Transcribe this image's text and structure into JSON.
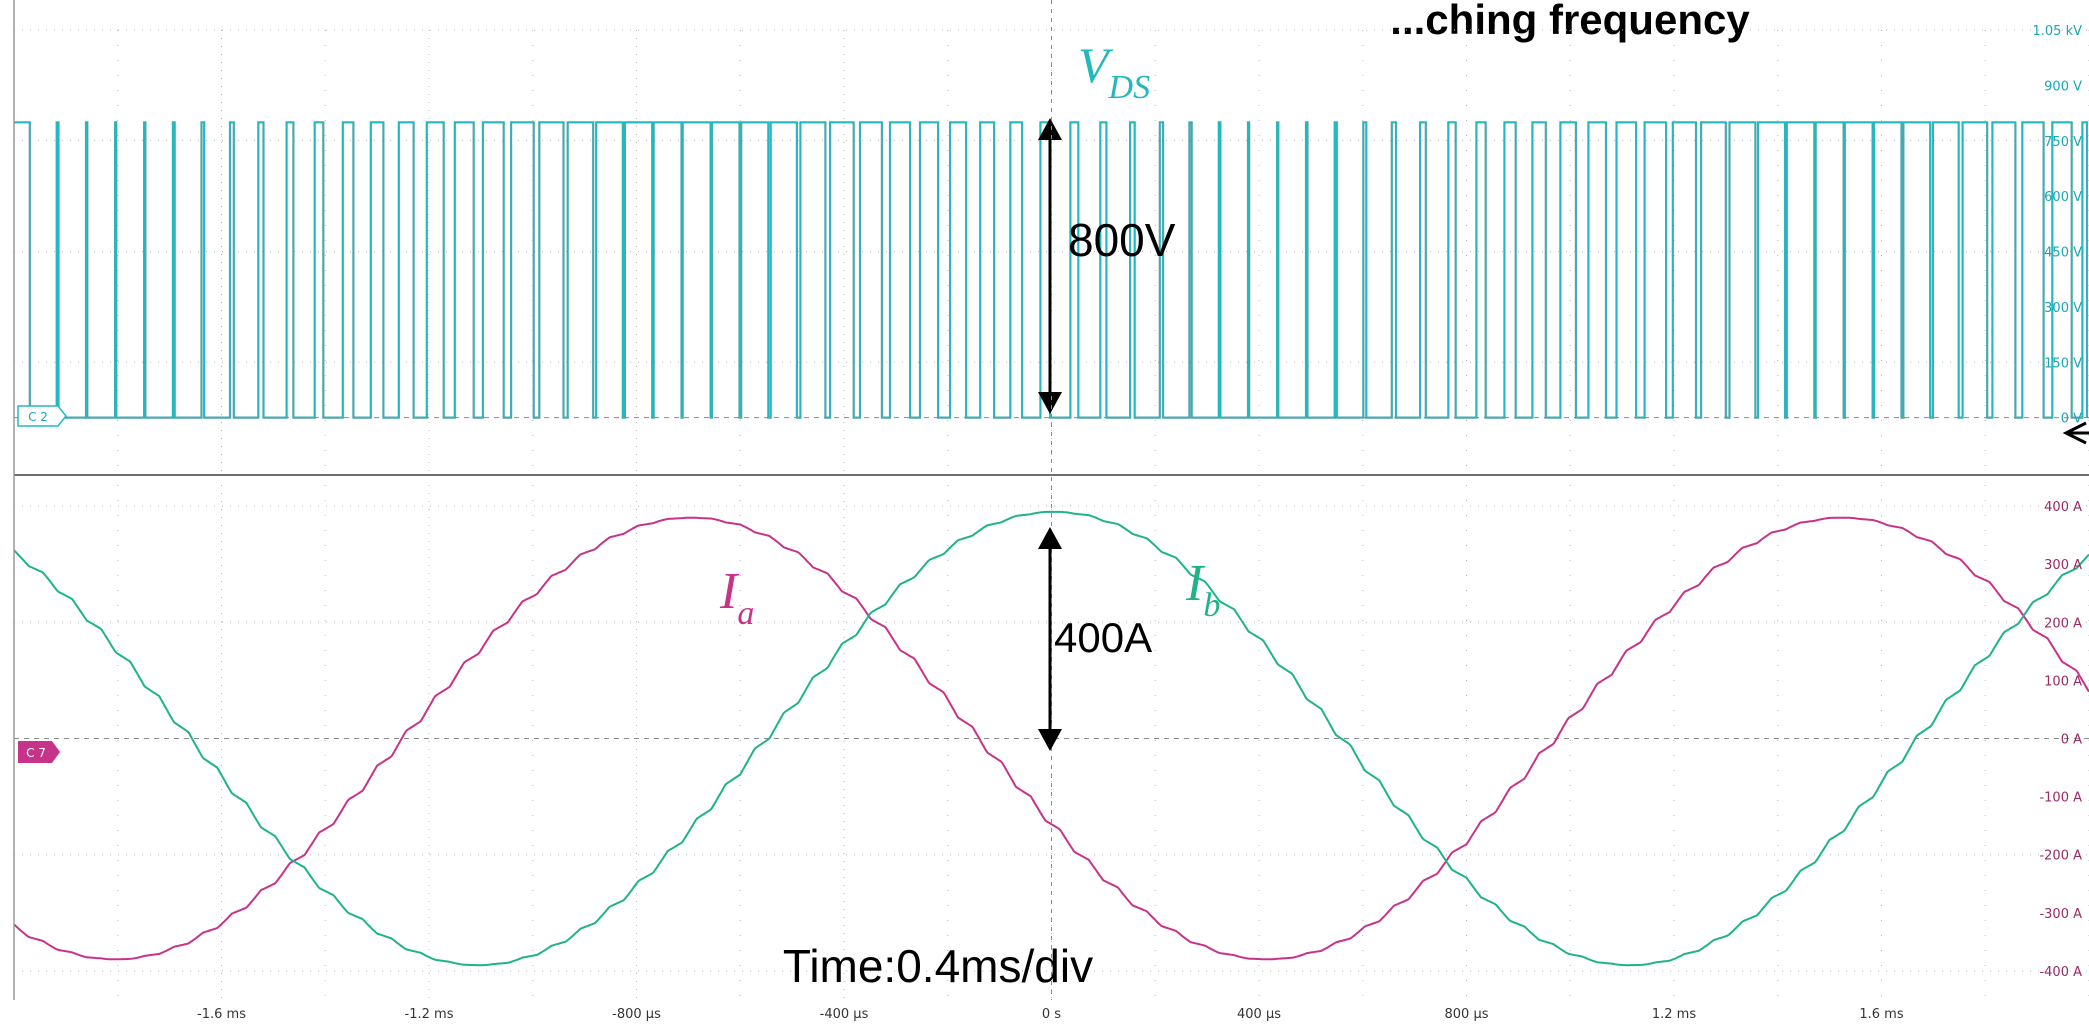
{
  "title_partial": "...ching frequency",
  "chart_data": [
    {
      "type": "line",
      "name": "upper-panel",
      "series": [
        {
          "name": "V_DS",
          "kind": "pwm",
          "high": 800,
          "low": 0
        }
      ],
      "y_unit": "V",
      "ylim": [
        -150,
        1050
      ],
      "y_ticks": [
        {
          "v": 1050,
          "label": "1.05 kV"
        },
        {
          "v": 900,
          "label": "900 V"
        },
        {
          "v": 750,
          "label": "750 V"
        },
        {
          "v": 600,
          "label": "600 V"
        },
        {
          "v": 450,
          "label": "450 V"
        },
        {
          "v": 300,
          "label": "300 V"
        },
        {
          "v": 150,
          "label": "150 V"
        },
        {
          "v": 0,
          "label": "0 V"
        }
      ],
      "channel_marker": "C 2",
      "annotations": {
        "trace_label_main": "V",
        "trace_label_sub": "DS",
        "amplitude_label": "800V"
      },
      "grid": true
    },
    {
      "type": "line",
      "name": "lower-panel",
      "series": [
        {
          "name": "I_a",
          "amplitude": 380,
          "phase_zero_rising_ms": -1.25
        },
        {
          "name": "I_b",
          "amplitude": 390,
          "phase_zero_rising_ms": -0.55
        }
      ],
      "period_ms": 2.22,
      "y_unit": "A",
      "ylim": [
        -450,
        450
      ],
      "y_ticks": [
        {
          "v": 400,
          "label": "400 A"
        },
        {
          "v": 300,
          "label": "300 A"
        },
        {
          "v": 200,
          "label": "200 A"
        },
        {
          "v": 100,
          "label": "100 A"
        },
        {
          "v": 0,
          "label": "0 A"
        },
        {
          "v": -100,
          "label": "-100 A"
        },
        {
          "v": -200,
          "label": "-200 A"
        },
        {
          "v": -300,
          "label": "-300 A"
        },
        {
          "v": -400,
          "label": "-400 A"
        }
      ],
      "channel_marker": "C 7",
      "annotations": {
        "ia_main": "I",
        "ia_sub": "a",
        "ib_main": "I",
        "ib_sub": "b",
        "amplitude_label": "400A",
        "timebase_label": "Time:0.4ms/div"
      },
      "grid": true
    }
  ],
  "x_axis": {
    "unit": "ms",
    "xlim": [
      -2.0,
      2.0
    ],
    "ticks": [
      {
        "v": -1.6,
        "label": "-1.6 ms"
      },
      {
        "v": -1.2,
        "label": "-1.2 ms"
      },
      {
        "v": -0.8,
        "label": "-800 µs"
      },
      {
        "v": -0.4,
        "label": "-400 µs"
      },
      {
        "v": 0.0,
        "label": "0 s"
      },
      {
        "v": 0.4,
        "label": "400 µs"
      },
      {
        "v": 0.8,
        "label": "800 µs"
      },
      {
        "v": 1.2,
        "label": "1.2 ms"
      },
      {
        "v": 1.6,
        "label": "1.6 ms"
      }
    ]
  },
  "colors": {
    "vds": "#22b8c0",
    "vds_dark": "#114a4e",
    "ia": "#c8338a",
    "ib": "#1fb38a",
    "grid": "#b5b5b5",
    "axis_text_upper": "#1aa7b3",
    "axis_text_lower": "#9a2a66",
    "divider": "#6e6e6e"
  }
}
